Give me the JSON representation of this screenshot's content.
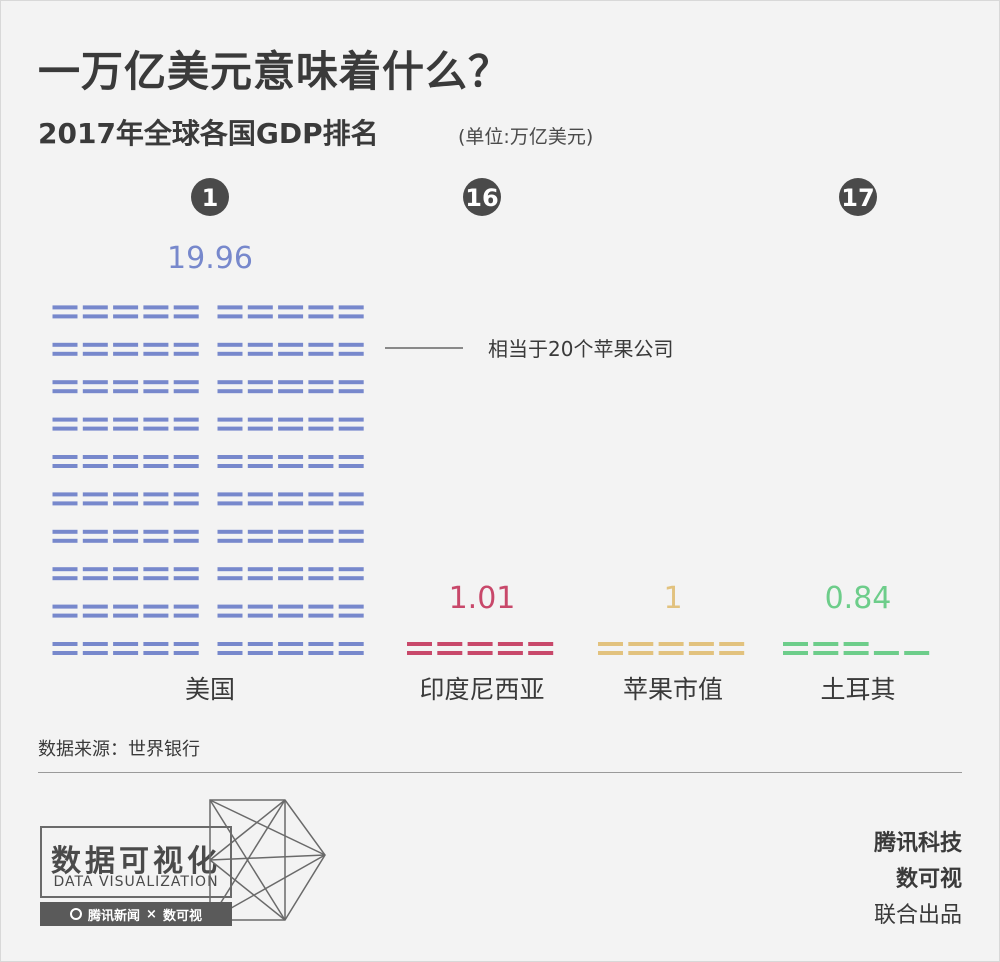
{
  "title": "一万亿美元意味着什么？",
  "subtitle": "2017年全球各国GDP排名",
  "unit": "(单位:万亿美元)",
  "annotation": "相当于20个苹果公司",
  "source": "数据来源：世界银行",
  "watermark": "腾讯科技",
  "logo": {
    "cn": "数据可视化",
    "en": "DATA VISUALIZATION",
    "strip_left": "腾讯新闻",
    "strip_sep": "×",
    "strip_right": "数可视"
  },
  "credits": [
    "腾讯科技",
    "数可视",
    "联合出品"
  ],
  "chart_data": {
    "type": "bar",
    "categories": [
      "美国",
      "印度尼西亚",
      "苹果市值",
      "土耳其"
    ],
    "ranks": [
      "1",
      "16",
      "",
      "17"
    ],
    "values": [
      19.96,
      1.01,
      1,
      0.84
    ],
    "value_labels": [
      "19.96",
      "1.01",
      "1",
      "0.84"
    ],
    "colors": [
      "#7788cc",
      "#c8486a",
      "#e2c27e",
      "#6dcd8a"
    ],
    "grid": false,
    "legend": "none"
  }
}
